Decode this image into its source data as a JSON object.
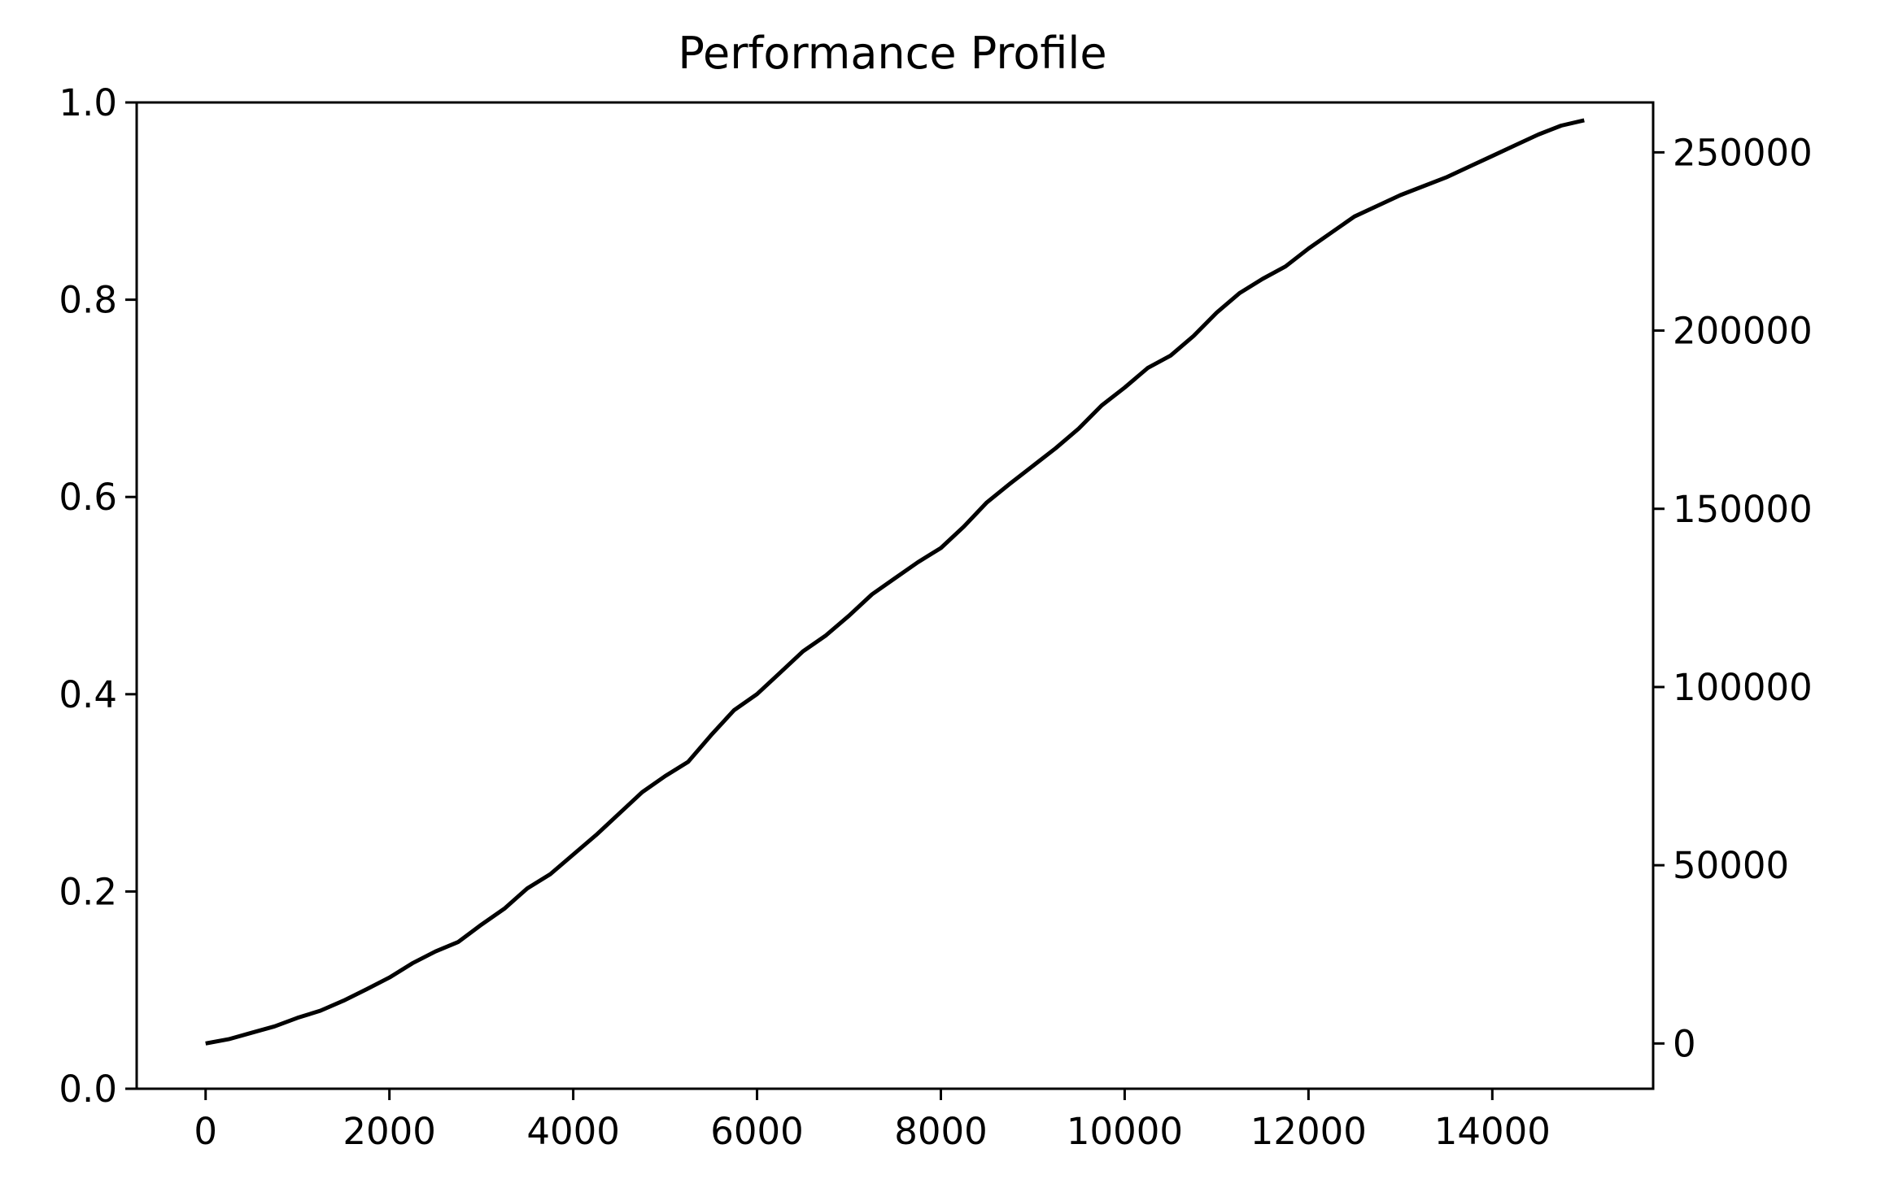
{
  "chart_data": {
    "type": "line",
    "title": "Performance Profile",
    "xlabel": "",
    "ylabel": "",
    "y2label": "",
    "xlim": [
      -750,
      15750
    ],
    "ylim": [
      0.0,
      1.0
    ],
    "y2lim": [
      -12700,
      264000
    ],
    "x_ticks": [
      0,
      2000,
      4000,
      6000,
      8000,
      10000,
      12000,
      14000
    ],
    "x_tick_labels": [
      "0",
      "2000",
      "4000",
      "6000",
      "8000",
      "10000",
      "12000",
      "14000"
    ],
    "y_ticks": [
      0.0,
      0.2,
      0.4,
      0.6,
      0.8,
      1.0
    ],
    "y_tick_labels": [
      "0.0",
      "0.2",
      "0.4",
      "0.6",
      "0.8",
      "1.0"
    ],
    "y2_ticks": [
      0,
      50000,
      100000,
      150000,
      200000,
      250000
    ],
    "y2_tick_labels": [
      "0",
      "50000",
      "100000",
      "150000",
      "200000",
      "250000"
    ],
    "grid": false,
    "legend": "none",
    "series": [
      {
        "axis": "right",
        "color": "#000000",
        "x": [
          0,
          250,
          500,
          750,
          1000,
          1250,
          1500,
          1750,
          2000,
          2250,
          2500,
          2750,
          3000,
          3250,
          3500,
          3750,
          4000,
          4250,
          4500,
          4750,
          5000,
          5250,
          5500,
          5750,
          6000,
          6250,
          6500,
          6750,
          7000,
          7250,
          7500,
          7750,
          8000,
          8250,
          8500,
          8750,
          9000,
          9250,
          9500,
          9750,
          10000,
          10250,
          10500,
          10750,
          11000,
          11250,
          11500,
          11750,
          12000,
          12250,
          12500,
          12750,
          13000,
          13250,
          13500,
          13750,
          14000,
          14250,
          14500,
          14750,
          15000
        ],
        "y": [
          0,
          1200,
          3000,
          4800,
          7200,
          9200,
          12000,
          15200,
          18500,
          22500,
          25800,
          28500,
          33300,
          37800,
          43500,
          47500,
          53000,
          58500,
          64500,
          70500,
          75000,
          79000,
          86500,
          93500,
          98000,
          104000,
          110000,
          114500,
          120000,
          126000,
          130500,
          135000,
          139000,
          145000,
          151800,
          157000,
          162000,
          167000,
          172500,
          179000,
          184000,
          189500,
          193000,
          198500,
          205000,
          210500,
          214500,
          218000,
          223000,
          227500,
          232000,
          235000,
          238000,
          240500,
          243000,
          246000,
          249000,
          252000,
          255000,
          257500,
          259000
        ]
      }
    ]
  }
}
